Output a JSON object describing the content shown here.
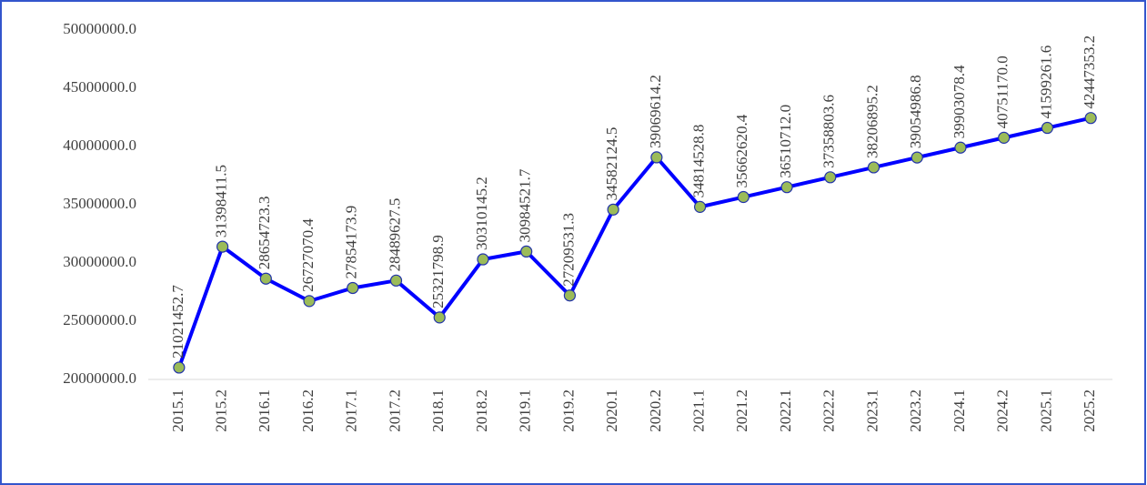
{
  "chart_data": {
    "type": "line",
    "categories": [
      "2015.1",
      "2015.2",
      "2016.1",
      "2016.2",
      "2017.1",
      "2017.2",
      "2018.1",
      "2018.2",
      "2019.1",
      "2019.2",
      "2020.1",
      "2020.2",
      "2021.1",
      "2021.2",
      "2022.1",
      "2022.2",
      "2023.1",
      "2023.2",
      "2024.1",
      "2024.2",
      "2025.1",
      "2025.2"
    ],
    "values": [
      21021452.7,
      31398411.5,
      28654723.3,
      26727070.4,
      27854173.9,
      28489627.5,
      25321798.9,
      30310145.2,
      30984521.7,
      27209531.3,
      34582124.5,
      39069614.2,
      34814528.8,
      35662620.4,
      36510712.0,
      37358803.6,
      38206895.2,
      39054986.8,
      39903078.4,
      40751170.0,
      41599261.6,
      42447353.2
    ],
    "value_labels": [
      "21021452.7",
      "31398411.5",
      "28654723.3",
      "26727070.4",
      "27854173.9",
      "28489627.5",
      "25321798.9",
      "30310145.2",
      "30984521.7",
      "27209531.3",
      "34582124.5",
      "39069614.2",
      "34814528.8",
      "35662620.4",
      "36510712.0",
      "37358803.6",
      "38206895.2",
      "39054986.8",
      "39903078.4",
      "40751170.0",
      "41599261.6",
      "42447353.2"
    ],
    "color": "#0000ff",
    "marker_color": "#9bbb59",
    "ylim": [
      20000000,
      50000000
    ],
    "yticks": [
      {
        "value": 20000000,
        "label": "20000000.0"
      },
      {
        "value": 25000000,
        "label": "25000000.0"
      },
      {
        "value": 30000000,
        "label": "30000000.0"
      },
      {
        "value": 35000000,
        "label": "35000000.0"
      },
      {
        "value": 40000000,
        "label": "40000000.0"
      },
      {
        "value": 45000000,
        "label": "45000000.0"
      },
      {
        "value": 50000000,
        "label": "50000000.0"
      }
    ],
    "grid": false
  }
}
